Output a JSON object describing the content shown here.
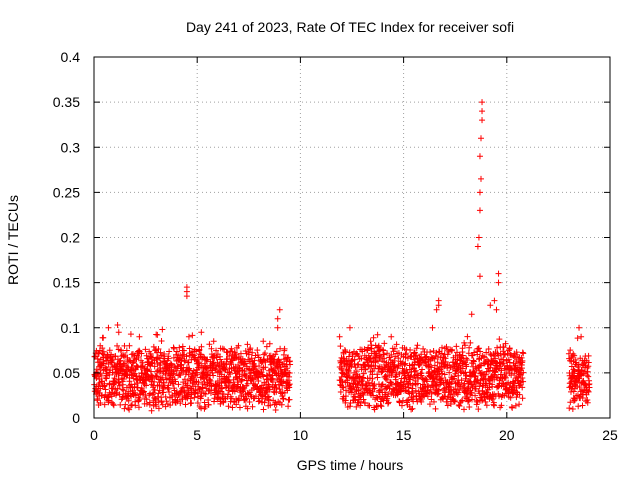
{
  "chart_data": {
    "type": "scatter",
    "title": "Day 241 of 2023, Rate Of TEC Index for receiver sofi",
    "xlabel": "GPS time / hours",
    "ylabel": "ROTI / TECUs",
    "xlim": [
      0,
      25
    ],
    "ylim": [
      0,
      0.4
    ],
    "x_ticks": [
      "0",
      "5",
      "10",
      "15",
      "20",
      "25"
    ],
    "y_ticks": [
      "0",
      "0.05",
      "0.1",
      "0.15",
      "0.2",
      "0.25",
      "0.3",
      "0.35",
      "0.4"
    ],
    "grid": true,
    "marker": "+",
    "color": "#ff0000",
    "observed_intervals_hours": [
      [
        0,
        9.5
      ],
      [
        11.9,
        20.8
      ],
      [
        23.0,
        24.0
      ]
    ],
    "typical_band": [
      0.02,
      0.07
    ],
    "series": [
      {
        "points": [
          [
            0.1,
            0.05
          ],
          [
            0.3,
            0.08
          ],
          [
            0.7,
            0.1
          ],
          [
            1.2,
            0.095
          ],
          [
            2.2,
            0.09
          ],
          [
            3.0,
            0.075
          ],
          [
            4.5,
            0.145
          ],
          [
            4.5,
            0.14
          ],
          [
            4.5,
            0.135
          ],
          [
            4.6,
            0.09
          ],
          [
            5.2,
            0.095
          ],
          [
            5.8,
            0.085
          ],
          [
            7.0,
            0.08
          ],
          [
            8.2,
            0.085
          ],
          [
            8.9,
            0.1
          ],
          [
            8.9,
            0.11
          ],
          [
            9.0,
            0.12
          ],
          [
            9.2,
            0.07
          ],
          [
            11.9,
            0.09
          ],
          [
            12.4,
            0.1
          ],
          [
            13.4,
            0.085
          ],
          [
            13.8,
            0.08
          ],
          [
            14.4,
            0.09
          ],
          [
            16.7,
            0.13
          ],
          [
            16.7,
            0.125
          ],
          [
            16.6,
            0.12
          ],
          [
            16.4,
            0.1
          ],
          [
            18.3,
            0.115
          ],
          [
            18.6,
            0.19
          ],
          [
            18.65,
            0.2
          ],
          [
            18.7,
            0.23
          ],
          [
            18.7,
            0.25
          ],
          [
            18.75,
            0.265
          ],
          [
            18.7,
            0.29
          ],
          [
            18.75,
            0.31
          ],
          [
            18.8,
            0.33
          ],
          [
            18.8,
            0.34
          ],
          [
            18.8,
            0.35
          ],
          [
            18.7,
            0.157
          ],
          [
            19.2,
            0.125
          ],
          [
            19.4,
            0.13
          ],
          [
            19.6,
            0.15
          ],
          [
            19.6,
            0.16
          ],
          [
            19.5,
            0.12
          ],
          [
            20.1,
            0.075
          ],
          [
            20.5,
            0.07
          ],
          [
            23.5,
            0.1
          ],
          [
            23.6,
            0.09
          ],
          [
            23.2,
            0.01
          ],
          [
            23.3,
            0.02
          ]
        ]
      }
    ]
  }
}
